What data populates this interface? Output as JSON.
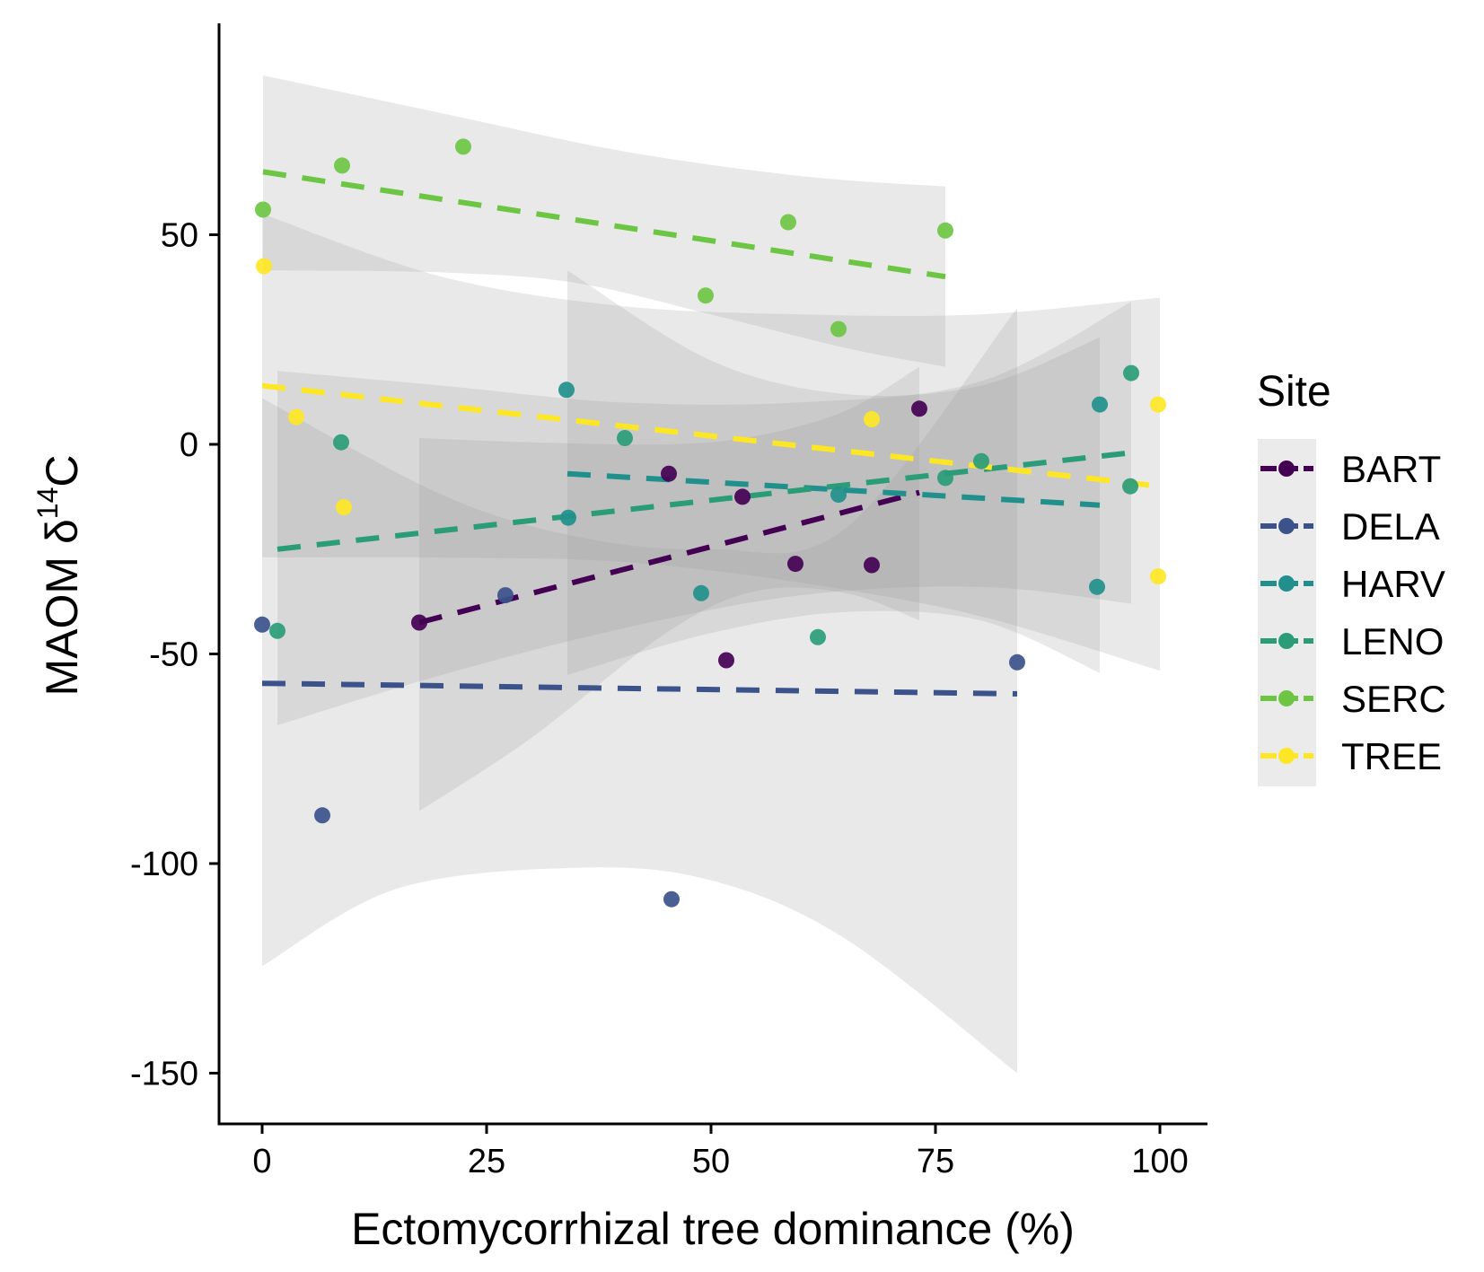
{
  "chart_data": {
    "type": "scatter",
    "xlabel": "Ectomycorrhizal tree dominance (%)",
    "ylabel_main": "MAOM δ",
    "ylabel_sup": "14",
    "ylabel_end": "C",
    "x_ticks": [
      0,
      25,
      50,
      75,
      100
    ],
    "y_ticks": [
      50,
      0,
      -50,
      -100,
      -150
    ],
    "xlim": [
      -5,
      105
    ],
    "ylim": [
      -162,
      100
    ],
    "grid": false,
    "legend": {
      "title": "Site",
      "placement": "right",
      "entries": [
        "BART",
        "DELA",
        "HARV",
        "LENO",
        "SERC",
        "TREE"
      ]
    },
    "series": [
      {
        "name": "BART",
        "color": "#440154",
        "points": [
          [
            17.5,
            -42.5
          ],
          [
            45.3,
            -7
          ],
          [
            51.7,
            -51.5
          ],
          [
            53.5,
            -12.5
          ],
          [
            59.4,
            -28.5
          ],
          [
            67.9,
            -28.8
          ],
          [
            73.2,
            8.5
          ]
        ],
        "fit": [
          [
            17.5,
            -42.5
          ],
          [
            73.2,
            -11.5
          ]
        ],
        "ribbon_upper": [
          [
            17.5,
            1.5
          ],
          [
            30,
            0.5
          ],
          [
            45,
            0
          ],
          [
            55,
            2
          ],
          [
            65,
            8
          ],
          [
            73.2,
            18.5
          ]
        ],
        "ribbon_lower": [
          [
            17.5,
            -87.5
          ],
          [
            30,
            -70
          ],
          [
            45,
            -45
          ],
          [
            55,
            -35
          ],
          [
            65,
            -35.5
          ],
          [
            73.2,
            -42
          ]
        ]
      },
      {
        "name": "DELA",
        "color": "#3B528B",
        "points": [
          [
            0,
            -43
          ],
          [
            6.7,
            -88.5
          ],
          [
            27.1,
            -36
          ],
          [
            45.6,
            -108.5
          ],
          [
            84.1,
            -52
          ]
        ],
        "fit": [
          [
            0,
            -57
          ],
          [
            84.1,
            -59.5
          ]
        ],
        "ribbon_upper": [
          [
            0,
            11
          ],
          [
            20,
            -12
          ],
          [
            35,
            -22
          ],
          [
            50,
            -25
          ],
          [
            65,
            -20
          ],
          [
            84.1,
            32.5
          ]
        ],
        "ribbon_lower": [
          [
            0,
            -124.5
          ],
          [
            15,
            -106
          ],
          [
            35,
            -101
          ],
          [
            50,
            -104
          ],
          [
            65,
            -118
          ],
          [
            84.1,
            -150
          ]
        ]
      },
      {
        "name": "HARV",
        "color": "#21908C",
        "points": [
          [
            33.9,
            13
          ],
          [
            34.1,
            -17.5
          ],
          [
            48.9,
            -35.5
          ],
          [
            64.2,
            -12
          ],
          [
            93,
            -34
          ],
          [
            93.3,
            9.5
          ]
        ],
        "fit": [
          [
            34,
            -7
          ],
          [
            93.3,
            -14.5
          ]
        ],
        "ribbon_upper": [
          [
            34,
            41.5
          ],
          [
            50,
            20
          ],
          [
            65,
            12
          ],
          [
            80,
            14
          ],
          [
            93.3,
            25.5
          ]
        ],
        "ribbon_lower": [
          [
            34,
            -55
          ],
          [
            50,
            -45
          ],
          [
            65,
            -40
          ],
          [
            80,
            -42
          ],
          [
            93.3,
            -54.5
          ]
        ]
      },
      {
        "name": "LENO",
        "color": "#2A9D78",
        "points": [
          [
            1.7,
            -44.5
          ],
          [
            8.8,
            0.5
          ],
          [
            40.4,
            1.5
          ],
          [
            61.9,
            -46
          ],
          [
            76.1,
            -8
          ],
          [
            80.1,
            -4
          ],
          [
            96.7,
            -10
          ],
          [
            96.8,
            17
          ]
        ],
        "fit": [
          [
            1.7,
            -25
          ],
          [
            96.8,
            -2
          ]
        ],
        "ribbon_upper": [
          [
            1.7,
            17.5
          ],
          [
            20,
            14
          ],
          [
            40,
            10
          ],
          [
            60,
            10
          ],
          [
            80,
            15
          ],
          [
            96.8,
            34
          ]
        ],
        "ribbon_lower": [
          [
            1.7,
            -67
          ],
          [
            20,
            -55
          ],
          [
            40,
            -44
          ],
          [
            60,
            -36
          ],
          [
            80,
            -34
          ],
          [
            96.8,
            -38
          ]
        ]
      },
      {
        "name": "SERC",
        "color": "#6CC644",
        "points": [
          [
            0.1,
            56
          ],
          [
            8.9,
            66.5
          ],
          [
            22.4,
            71
          ],
          [
            49.4,
            35.5
          ],
          [
            58.6,
            53
          ],
          [
            64.2,
            27.5
          ],
          [
            76.1,
            51
          ]
        ],
        "fit": [
          [
            0.1,
            65
          ],
          [
            76.1,
            40
          ]
        ],
        "ribbon_upper": [
          [
            0.1,
            88
          ],
          [
            20,
            79
          ],
          [
            40,
            70
          ],
          [
            60,
            64
          ],
          [
            76.1,
            61.5
          ]
        ],
        "ribbon_lower": [
          [
            0.1,
            41.5
          ],
          [
            20,
            41
          ],
          [
            35,
            38.5
          ],
          [
            50,
            31
          ],
          [
            65,
            23
          ],
          [
            76.1,
            18.5
          ]
        ]
      },
      {
        "name": "TREE",
        "color": "#FDE725",
        "points": [
          [
            0.2,
            42.5
          ],
          [
            3.8,
            6.5
          ],
          [
            9.1,
            -15
          ],
          [
            67.9,
            6
          ],
          [
            99.8,
            9.5
          ],
          [
            99.8,
            -31.5
          ]
        ],
        "fit": [
          [
            0,
            14
          ],
          [
            100,
            -10
          ]
        ],
        "ribbon_upper": [
          [
            0,
            55
          ],
          [
            20,
            40
          ],
          [
            40,
            33
          ],
          [
            60,
            31
          ],
          [
            80,
            31
          ],
          [
            100,
            35
          ]
        ],
        "ribbon_lower": [
          [
            0,
            -27
          ],
          [
            20,
            -27
          ],
          [
            40,
            -28
          ],
          [
            60,
            -33
          ],
          [
            80,
            -41
          ],
          [
            100,
            -54
          ]
        ]
      }
    ]
  }
}
